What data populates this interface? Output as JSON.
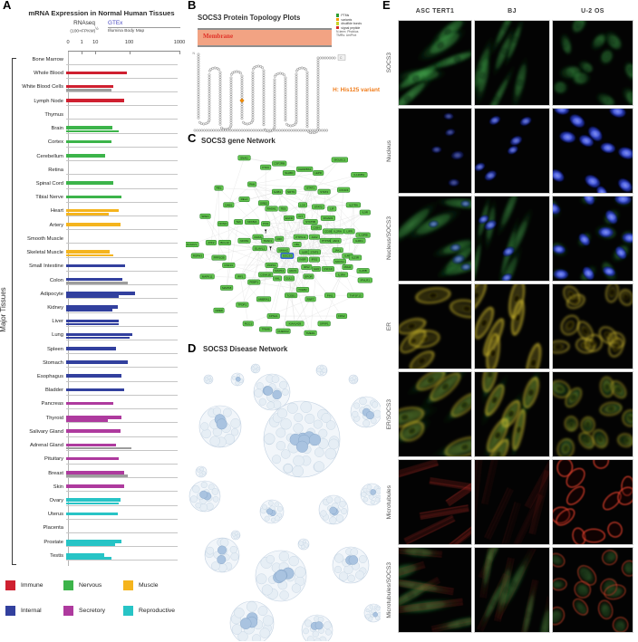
{
  "chart_data": {
    "type": "bar",
    "orientation": "horizontal",
    "title": "mRNA Expression in Normal Human Tissues",
    "source_left": "RNAseq",
    "source_left_sub": "(100×FPKM)",
    "source_left_sup": "½",
    "source_right": "GTEx",
    "source_right_sub": "Illumina Body Map",
    "axis_ticks": [
      "0",
      "1",
      "10",
      "100",
      "1000"
    ],
    "ylabel": "Major Tissues",
    "legend": [
      {
        "label": "Immune",
        "color": "#cf2030"
      },
      {
        "label": "Nervous",
        "color": "#3cb44a"
      },
      {
        "label": "Muscle",
        "color": "#f5b41d"
      },
      {
        "label": "Internal",
        "color": "#32409e"
      },
      {
        "label": "Secretory",
        "color": "#ae3a9e"
      },
      {
        "label": "Reproductive",
        "color": "#27c4c6"
      }
    ],
    "group_colors": {
      "Immune": "#cf2030",
      "Nervous": "#3cb44a",
      "Muscle": "#f5b41d",
      "Internal": "#32409e",
      "Secretory": "#ae3a9e",
      "Reproductive": "#27c4c6"
    },
    "rows": [
      {
        "tissue": "Bone Marrow",
        "group": "Immune",
        "values": []
      },
      {
        "tissue": "Whole Blood",
        "group": "Immune",
        "values": [
          95
        ]
      },
      {
        "tissue": "White Blood Cells",
        "group": "Immune",
        "values": [
          39,
          33
        ],
        "v2_gray": true
      },
      {
        "tissue": "Lymph Node",
        "group": "Immune",
        "values": [
          78
        ]
      },
      {
        "tissue": "Thymus",
        "group": "Immune",
        "values": []
      },
      {
        "tissue": "Brain",
        "group": "Nervous",
        "values": [
          35,
          57
        ]
      },
      {
        "tissue": "Cortex",
        "group": "Nervous",
        "values": [
          33
        ]
      },
      {
        "tissue": "Cerebellum",
        "group": "Nervous",
        "values": [
          22
        ]
      },
      {
        "tissue": "Retina",
        "group": "Nervous",
        "values": []
      },
      {
        "tissue": "Spinal Cord",
        "group": "Nervous",
        "values": [
          39
        ]
      },
      {
        "tissue": "Tibial Nerve",
        "group": "Nervous",
        "values": [
          65
        ]
      },
      {
        "tissue": "Heart",
        "group": "Muscle",
        "values": [
          57,
          28
        ]
      },
      {
        "tissue": "Artery",
        "group": "Muscle",
        "values": [
          61
        ]
      },
      {
        "tissue": "Smooth Muscle",
        "group": "Muscle",
        "values": []
      },
      {
        "tissue": "Skeletal Muscle",
        "group": "Muscle",
        "values": [
          30,
          39
        ]
      },
      {
        "tissue": "Small Intestine",
        "group": "Internal",
        "values": [
          83
        ]
      },
      {
        "tissue": "Colon",
        "group": "Internal",
        "values": [
          73,
          100
        ],
        "v2_gray": true
      },
      {
        "tissue": "Adipocyte",
        "group": "Internal",
        "values": [
          140,
          57
        ]
      },
      {
        "tissue": "Kidney",
        "group": "Internal",
        "values": [
          53,
          35
        ]
      },
      {
        "tissue": "Liver",
        "group": "Internal",
        "values": [
          57,
          55
        ]
      },
      {
        "tissue": "Lung",
        "group": "Internal",
        "values": [
          123,
          109
        ]
      },
      {
        "tissue": "Spleen",
        "group": "Internal",
        "values": [
          47
        ]
      },
      {
        "tissue": "Stomach",
        "group": "Internal",
        "values": [
          100
        ]
      },
      {
        "tissue": "Esophagus",
        "group": "Internal",
        "values": [
          68
        ]
      },
      {
        "tissue": "Bladder",
        "group": "Internal",
        "values": [
          78
        ]
      },
      {
        "tissue": "Pancreas",
        "group": "Secretory",
        "values": [
          39
        ]
      },
      {
        "tissue": "Thyroid",
        "group": "Secretory",
        "values": [
          68,
          27
        ]
      },
      {
        "tissue": "Salivary Gland",
        "group": "Secretory",
        "values": [
          61
        ]
      },
      {
        "tissue": "Adrenal Gland",
        "group": "Secretory",
        "values": [
          47,
          118
        ],
        "v2_gray": true
      },
      {
        "tissue": "Pituitary",
        "group": "Secretory",
        "values": [
          57
        ]
      },
      {
        "tissue": "Breast",
        "group": "Secretory",
        "values": [
          78,
          100
        ],
        "v2_gray": true
      },
      {
        "tissue": "Skin",
        "group": "Secretory",
        "values": [
          78
        ]
      },
      {
        "tissue": "Ovary",
        "group": "Reproductive",
        "values": [
          61,
          57
        ]
      },
      {
        "tissue": "Uterus",
        "group": "Reproductive",
        "values": [
          53
        ]
      },
      {
        "tissue": "Placenta",
        "group": "Reproductive",
        "values": []
      },
      {
        "tissue": "Prostate",
        "group": "Reproductive",
        "values": [
          68,
          44
        ]
      },
      {
        "tissue": "Testis",
        "group": "Reproductive",
        "values": [
          21,
          33
        ]
      }
    ]
  },
  "panelA": {
    "label": "A"
  },
  "panelB": {
    "label": "B",
    "title": "SOCS3 Protein Topology Plots",
    "membrane_label": "Membrane",
    "variant_note": "H: His125 variant",
    "n_term": "N",
    "c_term": "C",
    "legend": [
      {
        "label": "PTMs",
        "color": "#2e9e33"
      },
      {
        "label": "variants",
        "color": "#f59a00"
      },
      {
        "label": "disulfide bonds",
        "color": "#c9d32c"
      },
      {
        "label": "signal peptide",
        "color": "#d92b22"
      }
    ],
    "notes": [
      "N-term: Phobius",
      "TMRs: UniProt"
    ]
  },
  "panelC": {
    "label": "C",
    "title": "SOCS3 gene Network",
    "center": "SOCS3",
    "node_color": "#62c24e",
    "hub_border": "#2453d9",
    "markers": [
      [
        41,
        44
      ],
      [
        43.5,
        53
      ]
    ],
    "nodes": [
      [
        "SNAI1",
        30,
        4
      ],
      [
        "PTK6",
        41,
        9
      ],
      [
        "CSF2RB",
        48,
        7
      ],
      [
        "SH2B3",
        53,
        12
      ],
      [
        "KHDRBS1",
        61,
        10
      ],
      [
        "LEPR",
        68,
        12
      ],
      [
        "SIGLEC1",
        79,
        5
      ],
      [
        "IL12RB1",
        89,
        13
      ],
      [
        "REL",
        17,
        20
      ],
      [
        "PAH",
        34,
        18
      ],
      [
        "RELA",
        30,
        26
      ],
      [
        "GAB1",
        47,
        22
      ],
      [
        "NRTN",
        54,
        22
      ],
      [
        "STAT1",
        64,
        20
      ],
      [
        "STAT4",
        71,
        22
      ],
      [
        "CXCR4",
        81,
        21
      ],
      [
        "DAB1",
        22,
        29
      ],
      [
        "GRB2",
        40,
        28
      ],
      [
        "RASA1",
        44,
        31
      ],
      [
        "TES",
        50,
        31
      ],
      [
        "LCK",
        60,
        29
      ],
      [
        "STAT2",
        68,
        30
      ],
      [
        "LIF",
        75,
        31
      ],
      [
        "IL27RA",
        86,
        29
      ],
      [
        "IL9R",
        92,
        33
      ],
      [
        "SPEN",
        10,
        35
      ],
      [
        "NONO",
        19,
        39
      ],
      [
        "TEK",
        27,
        38
      ],
      [
        "NFKBIA",
        34,
        38
      ],
      [
        "PKM",
        41,
        39
      ],
      [
        "EGFR",
        53,
        36
      ],
      [
        "KIT",
        59,
        35
      ],
      [
        "STAT5B",
        64,
        38
      ],
      [
        "IFNAR1",
        73,
        36
      ],
      [
        "CISH",
        67,
        41
      ],
      [
        "CD28",
        73,
        43
      ],
      [
        "IL2RA",
        78,
        43
      ],
      [
        "LIFR",
        84,
        43
      ],
      [
        "IL10RB",
        91,
        45
      ],
      [
        "NFKB1",
        30,
        48
      ],
      [
        "KRAS",
        37,
        46
      ],
      [
        "TRAF1",
        42,
        48
      ],
      [
        "CRK",
        48,
        47
      ],
      [
        "PTPN11",
        59,
        46
      ],
      [
        "JAK2",
        66,
        46
      ],
      [
        "PTPN6",
        72,
        48
      ],
      [
        "JAK3",
        77,
        48
      ],
      [
        "IL2RG",
        89,
        48
      ],
      [
        "ACADVL",
        3,
        50
      ],
      [
        "ATF2",
        13,
        49
      ],
      [
        "BCL10",
        20,
        49
      ],
      [
        "YWHAZ",
        50,
        53
      ],
      [
        "CBL",
        57,
        50
      ],
      [
        "IL6R",
        61,
        54
      ],
      [
        "STAT6",
        66,
        54
      ],
      [
        "JAK1",
        78,
        53
      ],
      [
        "IL4R",
        83,
        56
      ],
      [
        "RSPH3",
        6,
        56
      ],
      [
        "PPP1CB",
        17,
        57
      ],
      [
        "ELAVL1",
        38,
        52
      ],
      [
        "SOCS3",
        52,
        56
      ],
      [
        "INSR",
        60,
        58
      ],
      [
        "IRS1",
        66,
        58
      ],
      [
        "SOCS1",
        79,
        59
      ],
      [
        "IL23R",
        87,
        57
      ],
      [
        "RNF31",
        22,
        61
      ],
      [
        "PDPK1",
        44,
        61
      ],
      [
        "MAPK1",
        48,
        64
      ],
      [
        "HRAS",
        55,
        64
      ],
      [
        "IRS2",
        62,
        62
      ],
      [
        "GHR",
        67,
        63
      ],
      [
        "CSF1R",
        73,
        63
      ],
      [
        "PRLR",
        83,
        62
      ],
      [
        "IL2RB",
        91,
        64
      ],
      [
        "MAPK11",
        11,
        67
      ],
      [
        "IRF1",
        28,
        67
      ],
      [
        "CSNK1E",
        41,
        66
      ],
      [
        "VHL",
        47,
        68
      ],
      [
        "CUL1",
        53,
        68
      ],
      [
        "EPOR",
        63,
        67
      ],
      [
        "IL3RA",
        80,
        66
      ],
      [
        "IFNLR1",
        92,
        69
      ],
      [
        "PEBP1",
        35,
        70
      ],
      [
        "MAPK8",
        21,
        73
      ],
      [
        "TCEB2",
        60,
        74
      ],
      [
        "TCEB1",
        54,
        77
      ],
      [
        "RNF7",
        64,
        79
      ],
      [
        "PIN1",
        74,
        77
      ],
      [
        "TNFSF13",
        87,
        77
      ],
      [
        "AMBRA1",
        40,
        79
      ],
      [
        "TFDP1",
        29,
        82
      ],
      [
        "NME8",
        17,
        85
      ],
      [
        "KPNA1",
        45,
        88
      ],
      [
        "RCC1",
        32,
        92
      ],
      [
        "TRIM8",
        41,
        95
      ],
      [
        "CUEDC2",
        50,
        96
      ],
      [
        "KIAA1429",
        56,
        92
      ],
      [
        "TMED1",
        64,
        97
      ],
      [
        "SFRP1",
        71,
        92
      ],
      [
        "FRS2",
        80,
        88
      ]
    ]
  },
  "panelD": {
    "label": "D",
    "title": "SOCS3 Disease Network",
    "clusters": [
      [
        95,
        40,
        20,
        3
      ],
      [
        57,
        26,
        7,
        1
      ],
      [
        25,
        26,
        5,
        0
      ],
      [
        77,
        14,
        5,
        0
      ],
      [
        150,
        16,
        6,
        0
      ],
      [
        185,
        26,
        5,
        0
      ],
      [
        38,
        78,
        23,
        2
      ],
      [
        128,
        92,
        42,
        6
      ],
      [
        199,
        62,
        17,
        2
      ],
      [
        17,
        128,
        6,
        0
      ],
      [
        21,
        155,
        17,
        2
      ],
      [
        95,
        172,
        13,
        2
      ],
      [
        163,
        170,
        16,
        2
      ],
      [
        205,
        153,
        12,
        1
      ],
      [
        55,
        198,
        5,
        0
      ],
      [
        130,
        208,
        6,
        0
      ],
      [
        40,
        220,
        19,
        2
      ],
      [
        105,
        243,
        28,
        4
      ],
      [
        182,
        231,
        20,
        2
      ],
      [
        73,
        295,
        24,
        3
      ],
      [
        145,
        303,
        17,
        2
      ],
      [
        207,
        284,
        10,
        1
      ]
    ]
  },
  "panelE": {
    "label": "E",
    "columns": [
      "ASC TERT1",
      "BJ",
      "U-2 OS"
    ],
    "rows": [
      "SOCS3",
      "Nucleus",
      "Nucleus/SOCS3",
      "ER",
      "ER/SOCS3",
      "Microtubules",
      "Microtubules/SOCS3"
    ]
  }
}
